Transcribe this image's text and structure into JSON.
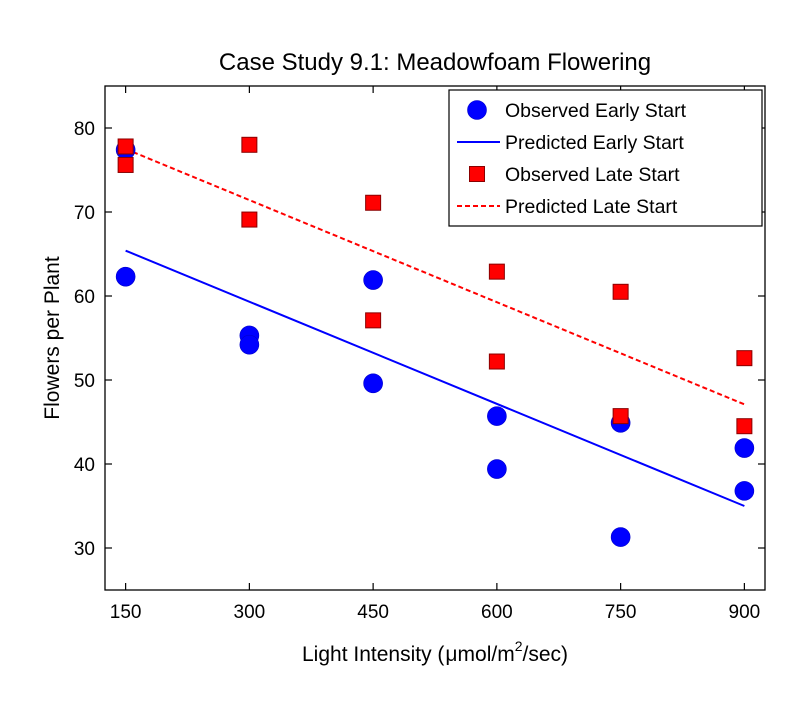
{
  "chart_data": {
    "type": "scatter",
    "title": "Case Study 9.1: Meadowfoam Flowering",
    "xlabel": {
      "prefix": "Light Intensity (",
      "mu": "μ",
      "unit": "mol/m",
      "sup": "2",
      "suffix": "/sec)"
    },
    "ylabel": "Flowers per Plant",
    "xlim": [
      125,
      925
    ],
    "ylim": [
      25,
      85
    ],
    "xticks": [
      150,
      300,
      450,
      600,
      750,
      900
    ],
    "yticks": [
      30,
      40,
      50,
      60,
      70,
      80
    ],
    "legend_position": "top-right",
    "series": [
      {
        "name": "Observed Early Start",
        "kind": "points",
        "marker": "circle",
        "color": "#0000ff",
        "points": [
          [
            150,
            77.4
          ],
          [
            150,
            62.3
          ],
          [
            300,
            55.3
          ],
          [
            300,
            54.2
          ],
          [
            450,
            61.9
          ],
          [
            450,
            49.6
          ],
          [
            600,
            45.7
          ],
          [
            600,
            39.4
          ],
          [
            750,
            44.9
          ],
          [
            750,
            31.3
          ],
          [
            900,
            41.9
          ],
          [
            900,
            36.8
          ]
        ]
      },
      {
        "name": "Predicted Early Start",
        "kind": "line",
        "style": "solid",
        "color": "#0000ff",
        "points": [
          [
            150,
            65.4
          ],
          [
            900,
            35.0
          ]
        ]
      },
      {
        "name": "Observed Late Start",
        "kind": "points",
        "marker": "square",
        "color": "#ff0000",
        "points": [
          [
            150,
            77.8
          ],
          [
            150,
            75.6
          ],
          [
            300,
            78.0
          ],
          [
            300,
            69.1
          ],
          [
            450,
            71.1
          ],
          [
            450,
            57.1
          ],
          [
            600,
            62.9
          ],
          [
            600,
            52.2
          ],
          [
            750,
            60.5
          ],
          [
            750,
            45.7
          ],
          [
            900,
            52.6
          ],
          [
            900,
            44.5
          ]
        ]
      },
      {
        "name": "Predicted Late Start",
        "kind": "line",
        "style": "dashed",
        "color": "#ff0000",
        "points": [
          [
            150,
            77.5
          ],
          [
            900,
            47.1
          ]
        ]
      }
    ]
  }
}
